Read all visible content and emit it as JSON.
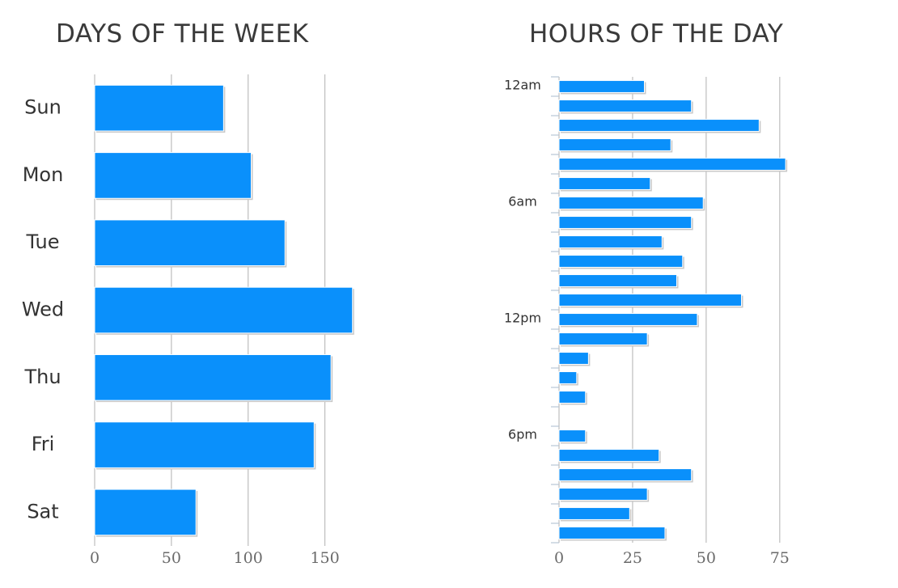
{
  "chart_data": [
    {
      "type": "bar",
      "orientation": "horizontal",
      "title": "DAYS OF THE WEEK",
      "categories": [
        "Sun",
        "Mon",
        "Tue",
        "Wed",
        "Thu",
        "Fri",
        "Sat"
      ],
      "values": [
        84,
        102,
        124,
        168,
        154,
        143,
        66
      ],
      "xlim": [
        0,
        175
      ],
      "xticks": [
        0,
        50,
        100,
        150
      ],
      "grid": true,
      "color": "#0a90fb"
    },
    {
      "type": "bar",
      "orientation": "horizontal",
      "title": "HOURS OF THE DAY",
      "categories": [
        "12am",
        "",
        "",
        "",
        "",
        "",
        "6am",
        "",
        "",
        "",
        "",
        "",
        "12pm",
        "",
        "",
        "",
        "",
        "",
        "6pm",
        "",
        "",
        "",
        "",
        ""
      ],
      "values": [
        29,
        45,
        68,
        38,
        77,
        31,
        49,
        45,
        35,
        42,
        40,
        62,
        47,
        30,
        10,
        6,
        9,
        0,
        9,
        34,
        45,
        30,
        24,
        36
      ],
      "xlim": [
        0,
        80
      ],
      "xticks": [
        0,
        25,
        50,
        75
      ],
      "grid": true,
      "color": "#0a90fb"
    }
  ]
}
